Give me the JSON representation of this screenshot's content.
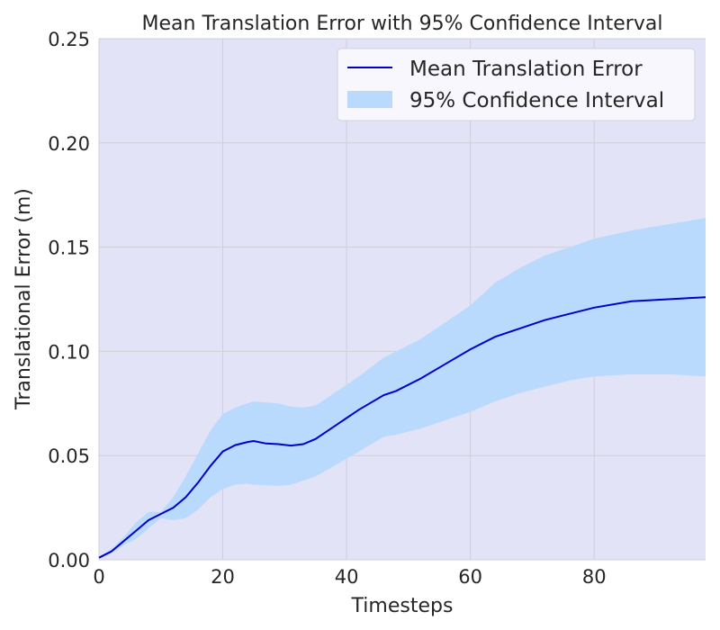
{
  "chart_data": {
    "type": "line",
    "title": "Mean Translation Error with 95% Confidence Interval",
    "xlabel": "Timesteps",
    "ylabel": "Translational Error (m)",
    "xlim": [
      0,
      98
    ],
    "ylim": [
      0,
      0.25
    ],
    "x_ticks": [
      0,
      20,
      40,
      60,
      80
    ],
    "y_ticks": [
      0.0,
      0.05,
      0.1,
      0.15,
      0.2,
      0.25
    ],
    "x_tick_labels": [
      "0",
      "20",
      "40",
      "60",
      "80"
    ],
    "y_tick_labels": [
      "0.00",
      "0.05",
      "0.10",
      "0.15",
      "0.20",
      "0.25"
    ],
    "grid": true,
    "legend_position": "top-right",
    "colors": {
      "background": "#e3e3f8",
      "line": "#0000cd",
      "band": "#badafd",
      "grid": "#cfcfd9"
    },
    "series": [
      {
        "name": "Mean Translation Error",
        "kind": "line",
        "x": [
          0,
          2,
          4,
          6,
          8,
          10,
          12,
          14,
          16,
          18,
          20,
          22,
          24,
          25,
          27,
          29,
          31,
          33,
          35,
          38,
          42,
          46,
          48,
          52,
          56,
          60,
          64,
          68,
          72,
          76,
          80,
          86,
          92,
          98
        ],
        "y": [
          0.001,
          0.004,
          0.009,
          0.014,
          0.019,
          0.022,
          0.025,
          0.03,
          0.037,
          0.045,
          0.052,
          0.055,
          0.0565,
          0.057,
          0.0558,
          0.0555,
          0.0548,
          0.0555,
          0.058,
          0.064,
          0.072,
          0.079,
          0.081,
          0.087,
          0.094,
          0.101,
          0.107,
          0.111,
          0.115,
          0.118,
          0.121,
          0.124,
          0.125,
          0.126
        ]
      },
      {
        "name": "95% Confidence Interval",
        "kind": "band",
        "x": [
          0,
          2,
          4,
          6,
          8,
          10,
          12,
          14,
          16,
          18,
          20,
          22,
          24,
          25,
          27,
          29,
          31,
          33,
          35,
          38,
          42,
          46,
          48,
          52,
          56,
          60,
          64,
          68,
          72,
          76,
          80,
          86,
          92,
          98
        ],
        "lower": [
          0.0005,
          0.003,
          0.007,
          0.01,
          0.015,
          0.02,
          0.019,
          0.02,
          0.024,
          0.03,
          0.034,
          0.036,
          0.0365,
          0.036,
          0.0358,
          0.0355,
          0.036,
          0.038,
          0.04,
          0.045,
          0.052,
          0.059,
          0.06,
          0.063,
          0.067,
          0.071,
          0.076,
          0.08,
          0.083,
          0.086,
          0.088,
          0.089,
          0.089,
          0.088
        ],
        "upper": [
          0.0015,
          0.005,
          0.011,
          0.018,
          0.023,
          0.023,
          0.03,
          0.04,
          0.051,
          0.062,
          0.07,
          0.073,
          0.075,
          0.076,
          0.0755,
          0.075,
          0.0735,
          0.073,
          0.074,
          0.08,
          0.088,
          0.097,
          0.1,
          0.106,
          0.114,
          0.122,
          0.133,
          0.14,
          0.146,
          0.15,
          0.154,
          0.158,
          0.161,
          0.164
        ]
      }
    ]
  }
}
